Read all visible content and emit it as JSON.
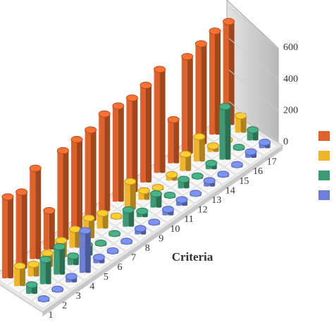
{
  "chart_data": {
    "type": "bar3d",
    "xlabel": "Criteria",
    "categories": [
      "1",
      "2",
      "3",
      "4",
      "5",
      "6",
      "7",
      "8",
      "9",
      "10",
      "11",
      "12",
      "13",
      "14",
      "15",
      "16",
      "17"
    ],
    "series": [
      {
        "color": "#e0622a",
        "values": [
          500,
          470,
          560,
          230,
          550,
          560,
          560,
          600,
          590,
          580,
          600,
          640,
          260,
          600,
          620,
          640,
          640
        ]
      },
      {
        "color": "#f0b429",
        "values": [
          110,
          60,
          70,
          90,
          100,
          110,
          80,
          0,
          160,
          40,
          0,
          20,
          90,
          140,
          20,
          0,
          90
        ]
      },
      {
        "color": "#3d9b74",
        "values": [
          40,
          140,
          160,
          40,
          50,
          0,
          0,
          90,
          20,
          70,
          0,
          40,
          0,
          20,
          320,
          0,
          50
        ]
      },
      {
        "color": "#6b7fd6",
        "values": [
          0,
          0,
          20,
          250,
          20,
          0,
          0,
          20,
          0,
          20,
          20,
          0,
          20,
          0,
          0,
          20,
          20
        ]
      }
    ],
    "ylim": [
      0,
      600
    ],
    "yticks": [
      0,
      200,
      400,
      600
    ]
  }
}
